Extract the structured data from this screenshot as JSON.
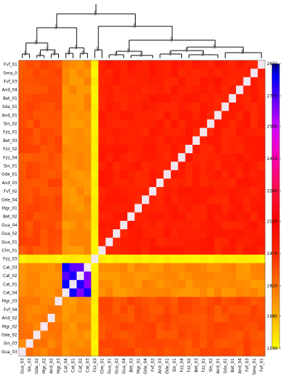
{
  "chart_data": {
    "type": "heatmap",
    "row_labels": [
      "Fvf_01",
      "Sma_01",
      "Fvf_03",
      "And_04",
      "Bet_01",
      "Sda_01",
      "And_01",
      "Sin_02",
      "Fzz_01",
      "Bet_03",
      "Fzz_02",
      "Fzz_04",
      "Sin_01",
      "Ode_01",
      "And_03",
      "Fvf_02",
      "Ode_04",
      "Mgr_01",
      "Bet_02",
      "Gua_04",
      "Gua_02",
      "Gua_01",
      "Clm_01",
      "Fzz_03",
      "Cat_03",
      "Cat_02",
      "Cat_01",
      "Cat_04",
      "Mgr_03",
      "Fvf_04",
      "And_02",
      "Mgr_02",
      "Ode_02",
      "Sin_03",
      "Gua_03"
    ],
    "row_labels_shown": [
      "Fvf_01",
      "Sma_0",
      "Fvf_03",
      "And_04",
      "Bet_01",
      "Sda_01",
      "And_01",
      "Sin_02",
      "Fzz_01",
      "Bet_03",
      "Fzz_02",
      "Fzz_04",
      "Sin_01",
      "Ode_01",
      "And_03",
      "Fvf_02",
      "Ode_04",
      "Mgr_01",
      "Bet_02",
      "Gua_04",
      "Gua_02",
      "Gua_01",
      "Clm_01",
      "Fzz_03",
      "Cat_03",
      "Cat_02",
      "Cat_01",
      "Cat_04",
      "Mgr_03",
      "Fvf_04",
      "And_02",
      "Mgr_02",
      "Ode_02",
      "Sin_03",
      "Gua_03"
    ],
    "col_labels": [
      "Gua_03",
      "Sin_03",
      "Ode_02",
      "Mgr_02",
      "And_02",
      "Mgr_03",
      "Cat_04",
      "Cat_01",
      "Cat_02",
      "Cat_03",
      "Fzz_03",
      "Clm_01",
      "Gua_01",
      "Gua_02",
      "Gua_04",
      "Bet_02",
      "Mgr_01",
      "Ode_04",
      "Fvf_02",
      "And_03",
      "Ode_01",
      "Sin_01",
      "Fzz_04",
      "Fzz_02",
      "Bet_03",
      "Fzz_01",
      "Sin_02",
      "And_01",
      "Sda_01",
      "Bet_01",
      "And_04",
      "Fvf_03",
      "Sma_01",
      "Fvf_01"
    ],
    "groups": {
      "Cat": [
        "Cat_01",
        "Cat_02",
        "Cat_03",
        "Cat_04"
      ],
      "Fzz_03": [
        "Fzz_03"
      ],
      "block_low": [
        "Gua_03",
        "Sin_03",
        "Ode_02",
        "Mgr_02",
        "And_02",
        "Fvf_04",
        "Mgr_03"
      ],
      "block_mid": [
        "Clm_01",
        "Gua_01",
        "Gua_02",
        "Gua_04",
        "Bet_02",
        "Mgr_01",
        "Ode_04",
        "Fvf_02",
        "And_03",
        "Ode_01",
        "Sin_01",
        "Fzz_04",
        "Fzz_02",
        "Bet_03",
        "Fzz_01",
        "Sin_02",
        "And_01",
        "Sda_01",
        "Bet_01",
        "And_04",
        "Fvf_03",
        "Sma_01",
        "Fvf_01"
      ]
    },
    "value_model": {
      "diagonal": null,
      "cat_cat": 1820,
      "cat_cat_near": 2780,
      "fzz03_any": 1560,
      "cat_other": 1760,
      "low_low": 1800,
      "low_mid": 1900,
      "mid_mid": 2010
    },
    "colorbar": {
      "min": 1530,
      "max": 2850,
      "ticks": [
        2850,
        2700,
        2560,
        2410,
        2260,
        2120,
        1970,
        1820,
        1680,
        1530
      ],
      "stops": [
        {
          "v": 1530,
          "c": "#ffff00"
        },
        {
          "v": 1680,
          "c": "#ffb000"
        },
        {
          "v": 1820,
          "c": "#ff7400"
        },
        {
          "v": 1970,
          "c": "#ff2a00"
        },
        {
          "v": 2120,
          "c": "#ff0000"
        },
        {
          "v": 2260,
          "c": "#ff1040"
        },
        {
          "v": 2410,
          "c": "#ff00b0"
        },
        {
          "v": 2560,
          "c": "#d000ff"
        },
        {
          "v": 2700,
          "c": "#5000ff"
        },
        {
          "v": 2790,
          "c": "#0000ff"
        },
        {
          "v": 2850,
          "c": "#000080"
        }
      ]
    },
    "dendrogram_label": "1.00",
    "grid": false
  }
}
